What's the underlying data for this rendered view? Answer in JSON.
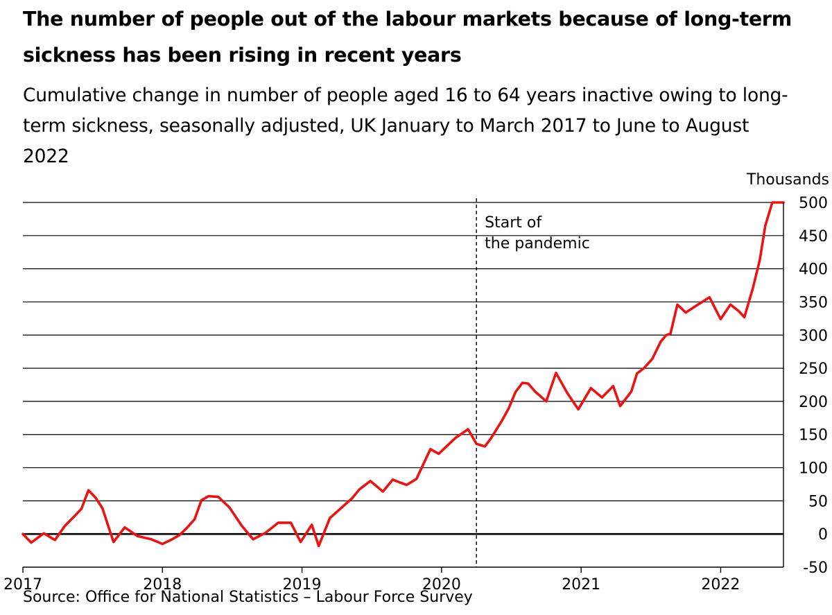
{
  "title": "The number of people out of the labour markets because of long-term sickness has been rising in recent years",
  "subtitle": "Cumulative change in number of people aged 16 to 64 years inactive owing to long-term sickness, seasonally adjusted, UK January to March 2017 to June to August 2022",
  "source": "Source: Office for National Statistics – Labour Force Survey",
  "colors": {
    "series": "#ee1111",
    "grid": "#000000",
    "annotation": "#000000"
  },
  "chart_data": {
    "type": "line",
    "ylabel": "Thousands",
    "ylim": [
      -50,
      500
    ],
    "xlim": [
      2017.0,
      2022.45
    ],
    "yticks": [
      500,
      450,
      400,
      350,
      300,
      250,
      200,
      150,
      100,
      50,
      0,
      -50
    ],
    "xticks": [
      2017,
      2018,
      2019,
      2020,
      2021,
      2022
    ],
    "grid": true,
    "annotation": {
      "x": 2020.25,
      "lines": [
        "Start of",
        "the pandemic"
      ]
    },
    "series": [
      {
        "x": [
          2017.0,
          2017.06,
          2017.15,
          2017.23,
          2017.3,
          2017.37,
          2017.42,
          2017.47,
          2017.52,
          2017.57,
          2017.61,
          2017.65,
          2017.73,
          2017.82,
          2017.92,
          2018.0,
          2018.06,
          2018.12,
          2018.17,
          2018.23,
          2018.28,
          2018.33,
          2018.4,
          2018.48,
          2018.57,
          2018.65,
          2018.74,
          2018.83,
          2018.92,
          2018.99,
          2019.07,
          2019.12,
          2019.2,
          2019.28,
          2019.36,
          2019.41,
          2019.49,
          2019.58,
          2019.65,
          2019.71,
          2019.75,
          2019.82,
          2019.92,
          2019.98,
          2020.1,
          2020.19,
          2020.25,
          2020.31,
          2020.35,
          2020.43,
          2020.48,
          2020.53,
          2020.58,
          2020.62,
          2020.67,
          2020.75,
          2020.82,
          2020.9,
          2020.98,
          2021.07,
          2021.15,
          2021.23,
          2021.28,
          2021.36,
          2021.4,
          2021.45,
          2021.51,
          2021.57,
          2021.61,
          2021.64,
          2021.69,
          2021.75,
          2021.83,
          2021.92,
          2022.0,
          2022.07,
          2022.13,
          2022.17,
          2022.23,
          2022.28,
          2022.32,
          2022.37,
          2022.45
        ],
        "values": [
          0,
          -13,
          1,
          -9,
          12,
          27,
          38,
          66,
          55,
          39,
          13,
          -12,
          10,
          -3,
          -8,
          -15,
          -9,
          -2,
          8,
          22,
          51,
          57,
          56,
          40,
          12,
          -8,
          2,
          17,
          17,
          -12,
          14,
          -18,
          24,
          39,
          54,
          67,
          80,
          64,
          82,
          77,
          74,
          83,
          128,
          121,
          145,
          158,
          136,
          132,
          143,
          170,
          189,
          214,
          228,
          227,
          215,
          200,
          243,
          213,
          188,
          220,
          206,
          223,
          193,
          215,
          242,
          250,
          264,
          290,
          300,
          302,
          346,
          334,
          345,
          357,
          324,
          346,
          336,
          327,
          370,
          413,
          465,
          500,
          500
        ]
      }
    ]
  }
}
